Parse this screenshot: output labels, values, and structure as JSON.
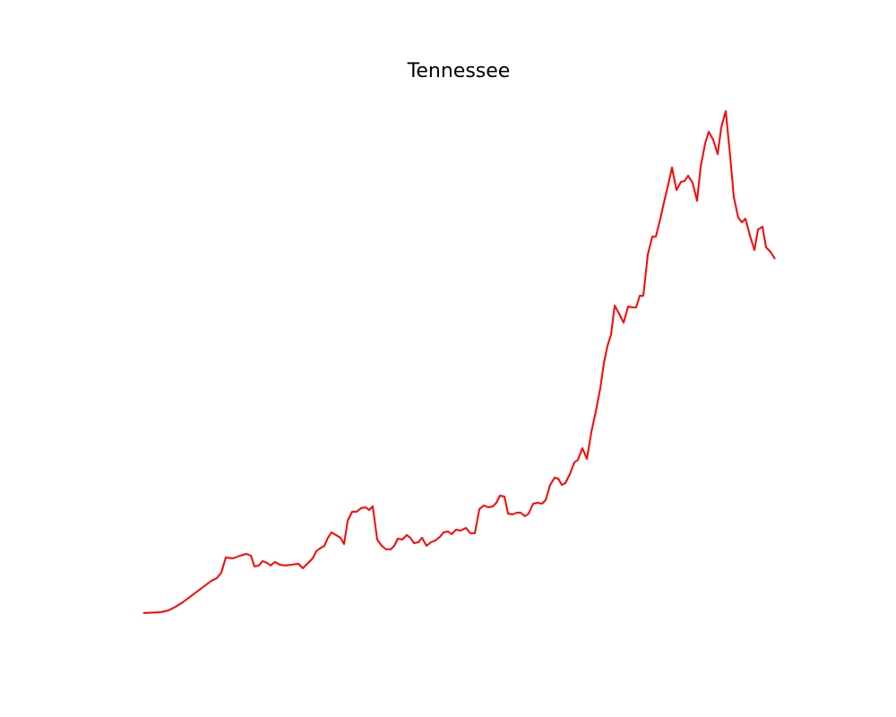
{
  "chart_data": {
    "type": "line",
    "title": "Tennessee",
    "x": [
      0,
      10,
      20,
      28,
      36,
      44,
      52,
      60,
      68,
      76,
      82,
      87,
      92,
      100,
      108,
      115,
      120,
      124,
      129,
      133,
      138,
      142,
      147,
      152,
      158,
      166,
      173,
      178,
      184,
      189,
      193,
      197,
      202,
      206,
      210,
      215,
      220,
      224,
      228,
      233,
      238,
      243,
      248,
      252,
      256,
      261,
      266,
      271,
      276,
      280,
      284,
      289,
      294,
      298,
      302,
      307,
      311,
      316,
      321,
      326,
      331,
      335,
      340,
      344,
      349,
      354,
      360,
      365,
      370,
      375,
      380,
      385,
      390,
      394,
      398,
      403,
      407,
      412,
      417,
      421,
      426,
      430,
      435,
      440,
      445,
      449,
      454,
      459,
      463,
      467,
      471,
      476,
      481,
      485,
      490,
      495,
      500,
      505,
      510,
      514,
      518,
      522,
      526,
      531,
      536,
      541,
      546,
      550,
      554,
      558,
      563,
      568,
      572,
      577,
      581,
      586,
      590,
      595,
      600,
      604,
      608,
      613,
      618,
      622,
      627,
      631,
      636,
      641,
      645,
      650,
      655,
      659,
      664,
      668,
      672,
      677,
      682,
      686,
      691,
      695,
      700,
      705
    ],
    "series": [
      {
        "color": "#ff0000",
        "values": [
          16,
          16.5,
          17,
          19,
          23,
          28,
          34,
          40,
          46,
          52,
          55,
          61,
          78,
          77,
          80,
          82,
          80,
          68,
          69,
          74,
          72,
          69,
          73,
          70,
          69,
          70,
          71,
          66,
          72,
          77,
          85,
          88,
          91,
          100,
          106,
          103,
          100,
          93,
          119,
          129,
          129,
          133,
          134,
          131,
          135,
          98,
          91,
          87,
          87,
          91,
          99,
          98,
          103,
          100,
          94,
          95,
          100,
          91,
          95,
          97,
          101,
          106,
          107,
          104,
          109,
          108,
          111,
          105,
          105,
          132,
          136,
          134,
          135,
          139,
          147,
          146,
          127,
          126,
          128,
          128,
          124,
          127,
          138,
          139,
          138,
          142,
          159,
          167,
          166,
          159,
          161,
          171,
          184,
          187,
          200,
          188,
          218,
          241,
          267,
          295,
          314,
          327,
          359,
          350,
          340,
          358,
          357,
          357,
          370,
          370,
          416,
          436,
          436,
          456,
          474,
          495,
          513,
          488,
          497,
          498,
          504,
          496,
          476,
          514,
          540,
          553,
          544,
          528,
          558,
          576,
          525,
          480,
          457,
          452,
          456,
          437,
          421,
          444,
          447,
          424,
          419,
          411
        ]
      }
    ],
    "xlim": [
      -35,
      740
    ],
    "ylim": [
      -4,
      604
    ]
  }
}
